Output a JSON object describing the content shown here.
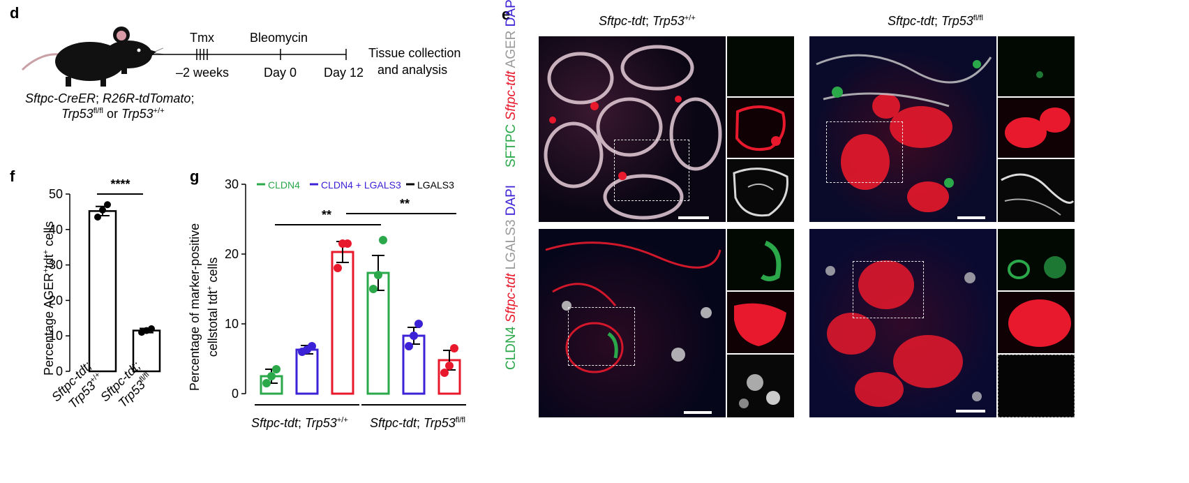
{
  "panel_d": {
    "label": "d",
    "tmx": "Tmx",
    "bleomycin": "Bleomycin",
    "weeks": "–2 weeks",
    "day0": "Day 0",
    "day12": "Day 12",
    "tissue1": "Tissue collection",
    "tissue2": "and analysis",
    "geno1_a": "Sftpc-CreER",
    "geno1_b": "; ",
    "geno1_c": "R26R-tdTomato",
    "geno1_d": ";",
    "geno2_a": "Trp53",
    "geno2_sup1": "fl/fl",
    "geno2_b": " or ",
    "geno2_c": "Trp53",
    "geno2_sup2": "+/+"
  },
  "panel_f": {
    "label": "f",
    "ylabel_a": "Percentage AGER",
    "ylabel_sup1": "+",
    "ylabel_b": "tdt",
    "ylabel_sup2": "+",
    "ylabel_c": " cells",
    "significance": "****",
    "xlab1_a": "Sftpc-tdt;",
    "xlab1_b": "Trp53",
    "xlab1_sup": "+/+",
    "xlab2_a": "Sftpc-tdt;",
    "xlab2_b": "Trp53",
    "xlab2_sup": "fl/fl"
  },
  "panel_g": {
    "label": "g",
    "ylabel1": "Percentage of marker-positive",
    "ylabel2_a": "cellstotal tdt",
    "ylabel2_sup": "+",
    "ylabel2_b": " cells",
    "sig1": "**",
    "sig2": "**",
    "group1_a": "Sftpc-tdt",
    "group1_b": "; ",
    "group1_c": "Trp53",
    "group1_sup": "+/+",
    "group2_a": "Sftpc-tdt",
    "group2_b": "; ",
    "group2_c": "Trp53",
    "group2_sup": "fl/fl"
  },
  "panel_e": {
    "label": "e",
    "col1_a": "Sftpc-tdt",
    "col1_b": "; ",
    "col1_c": "Trp53",
    "col1_sup": "+/+",
    "col2_a": "Sftpc-tdt",
    "col2_b": "; ",
    "col2_c": "Trp53",
    "col2_sup": "fl/fl",
    "row1_l1": "SFTPC",
    "row1_l2": "Sftpc-tdt",
    "row1_l3": "AGER",
    "row1_l4": "DAPI",
    "row2_l1": "CLDN4",
    "row2_l2": "Sftpc-tdt",
    "row2_l3": "LGALS3",
    "row2_l4": "DAPI"
  },
  "colors": {
    "green": "#2aa84a",
    "blue": "#3b22d6",
    "red": "#e8192c",
    "black": "#000000"
  },
  "chart_data": [
    {
      "type": "bar",
      "panel": "f",
      "categories": [
        "Sftpc-tdt; Trp53+/+",
        "Sftpc-tdt; Trp53fl/fl"
      ],
      "values": [
        45.2,
        11.5
      ],
      "errors": [
        1.3,
        0.6
      ],
      "points": [
        [
          43.5,
          45.5,
          47.0
        ],
        [
          11.0,
          11.5,
          12.0
        ]
      ],
      "ylim": [
        0,
        50
      ],
      "yticks": [
        0,
        10,
        20,
        30,
        40,
        50
      ],
      "significance": "****"
    },
    {
      "type": "bar",
      "panel": "g",
      "series": [
        {
          "name": "CLDN4",
          "color": "#2aa84a",
          "values": [
            2.5,
            17.3
          ],
          "errors": [
            1.0,
            2.5
          ],
          "points": [
            [
              1.5,
              2.5,
              3.5
            ],
            [
              15.0,
              17.0,
              22.0
            ]
          ]
        },
        {
          "name": "CLDN4 + LGALS3",
          "color": "#3b22d6",
          "values": [
            6.3,
            8.3
          ],
          "errors": [
            0.6,
            1.2
          ],
          "points": [
            [
              6.0,
              6.3,
              6.8
            ],
            [
              6.8,
              8.3,
              10.0
            ]
          ]
        },
        {
          "name": "LGALS3",
          "color": "#000000",
          "barColor": "#e8192c",
          "values": [
            20.3,
            4.8
          ],
          "errors": [
            1.5,
            1.4
          ],
          "points": [
            [
              18.0,
              21.5,
              21.5
            ],
            [
              3.0,
              4.0,
              6.5
            ]
          ]
        }
      ],
      "groups": [
        "Sftpc-tdt; Trp53+/+",
        "Sftpc-tdt; Trp53fl/fl"
      ],
      "ylim": [
        0,
        30
      ],
      "yticks": [
        0,
        10,
        20,
        30
      ],
      "significance": [
        "**",
        "**"
      ]
    }
  ]
}
